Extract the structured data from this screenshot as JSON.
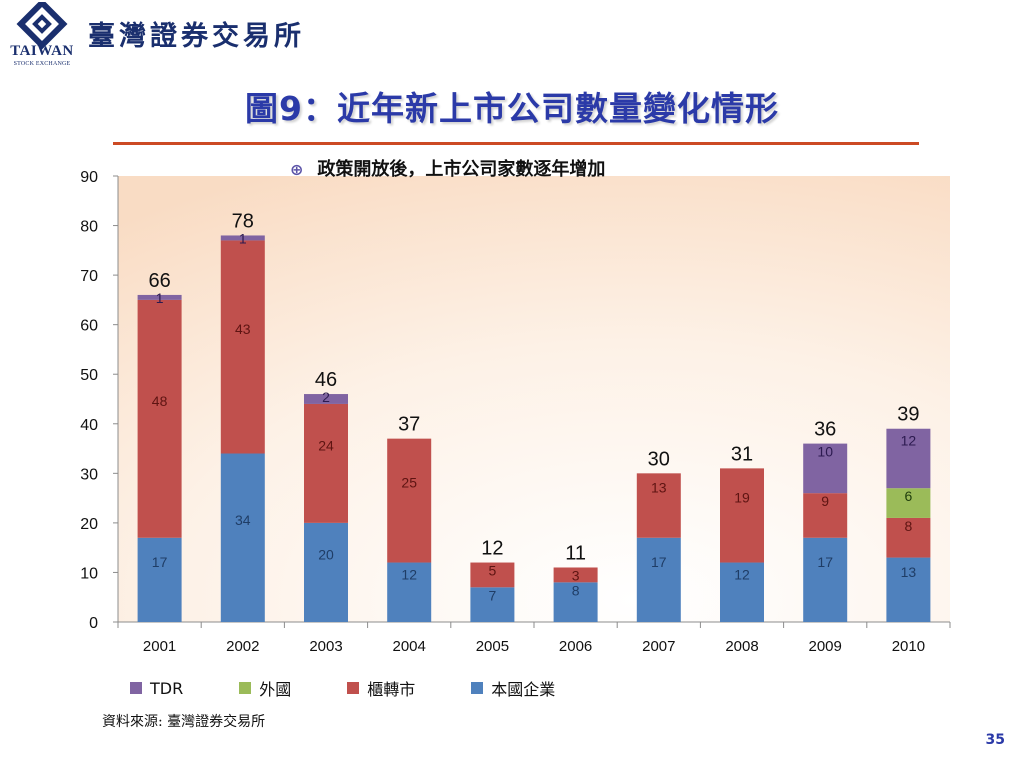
{
  "header": {
    "brand_name": "臺灣證券交易所",
    "logo_text": "TAIWAN",
    "logo_subtext": "STOCK EXCHANGE"
  },
  "slide": {
    "title": "圖9：近年新上市公司數量變化情形",
    "bullet": "政策開放後，上市公司家數逐年增加",
    "source": "資料來源: 臺灣證券交易所",
    "page_number": "35"
  },
  "colors": {
    "brand_blue": "#1a2f6e",
    "title_blue": "#2b3aa8",
    "rule": "#cc4a24",
    "domestic": "#4f81bd",
    "otc": "#c0504d",
    "foreign": "#9bbb59",
    "tdr": "#8064a2"
  },
  "chart_data": {
    "type": "bar",
    "stacked": true,
    "categories": [
      "2001",
      "2002",
      "2003",
      "2004",
      "2005",
      "2006",
      "2007",
      "2008",
      "2009",
      "2010"
    ],
    "series": [
      {
        "name": "本國企業",
        "color": "#4f81bd",
        "values": [
          17,
          34,
          20,
          12,
          7,
          8,
          17,
          12,
          17,
          13
        ]
      },
      {
        "name": "櫃轉市",
        "color": "#c0504d",
        "values": [
          48,
          43,
          24,
          25,
          5,
          3,
          13,
          19,
          9,
          8
        ]
      },
      {
        "name": "外國",
        "color": "#9bbb59",
        "values": [
          0,
          0,
          0,
          0,
          0,
          0,
          0,
          0,
          0,
          6
        ]
      },
      {
        "name": "TDR",
        "color": "#8064a2",
        "values": [
          1,
          1,
          2,
          0,
          0,
          0,
          0,
          0,
          10,
          12
        ]
      }
    ],
    "totals": [
      66,
      78,
      46,
      37,
      12,
      11,
      30,
      31,
      36,
      39
    ],
    "ylim": [
      0,
      90
    ],
    "yticks": [
      0,
      10,
      20,
      30,
      40,
      50,
      60,
      70,
      80,
      90
    ],
    "grid": false,
    "legend": [
      {
        "name": "TDR",
        "color": "#8064a2"
      },
      {
        "name": "外國",
        "color": "#9bbb59"
      },
      {
        "name": "櫃轉市",
        "color": "#c0504d"
      },
      {
        "name": "本國企業",
        "color": "#4f81bd"
      }
    ],
    "legend_position": "bottom"
  }
}
